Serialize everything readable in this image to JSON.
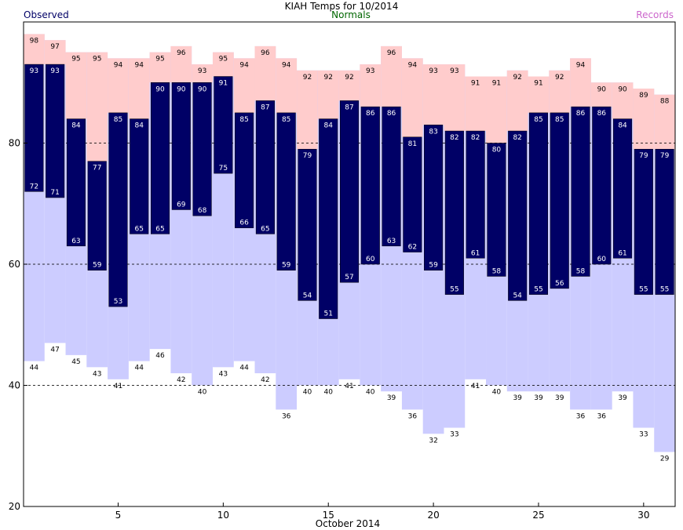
{
  "chart_data": {
    "type": "bar",
    "title": "KIAH Temps for 10/2014",
    "legend": [
      {
        "label": "Observed",
        "color": "#000066"
      },
      {
        "label": "Normals",
        "color": "#006600"
      },
      {
        "label": "Records",
        "color": "#cc66cc"
      }
    ],
    "xlabel": "October 2014",
    "ylabel": "",
    "ylim": [
      20,
      100
    ],
    "xlim": [
      0.5,
      31.5
    ],
    "x_ticks": [
      5,
      10,
      15,
      20,
      25,
      30
    ],
    "y_ticks": [
      20,
      40,
      60,
      80
    ],
    "grid_y": [
      40,
      60,
      80
    ],
    "days": [
      1,
      2,
      3,
      4,
      5,
      6,
      7,
      8,
      9,
      10,
      11,
      12,
      13,
      14,
      15,
      16,
      17,
      18,
      19,
      20,
      21,
      22,
      23,
      24,
      25,
      26,
      27,
      28,
      29,
      30,
      31
    ],
    "series": [
      {
        "name": "Observed High",
        "values": [
          93,
          93,
          84,
          77,
          85,
          84,
          90,
          90,
          90,
          91,
          85,
          87,
          85,
          79,
          84,
          87,
          86,
          86,
          81,
          83,
          82,
          82,
          80,
          82,
          85,
          85,
          86,
          86,
          84,
          79,
          79
        ]
      },
      {
        "name": "Observed Low",
        "values": [
          72,
          71,
          63,
          59,
          53,
          65,
          65,
          69,
          68,
          75,
          66,
          65,
          59,
          54,
          51,
          57,
          60,
          63,
          62,
          59,
          55,
          61,
          58,
          54,
          55,
          56,
          58,
          60,
          61,
          55,
          55
        ]
      },
      {
        "name": "Record High",
        "values": [
          98,
          97,
          95,
          95,
          94,
          94,
          95,
          96,
          93,
          95,
          94,
          96,
          94,
          92,
          92,
          92,
          93,
          96,
          94,
          93,
          93,
          91,
          91,
          92,
          91,
          92,
          94,
          90,
          90,
          89,
          88
        ]
      },
      {
        "name": "Record Low",
        "values": [
          44,
          47,
          45,
          43,
          41,
          44,
          46,
          42,
          40,
          43,
          44,
          42,
          36,
          40,
          40,
          41,
          40,
          39,
          36,
          32,
          33,
          41,
          40,
          39,
          39,
          39,
          36,
          36,
          39,
          33,
          29
        ]
      },
      {
        "name": "Normal High",
        "values": [
          null,
          null,
          null,
          null,
          null,
          null,
          null,
          null,
          null,
          null,
          null,
          null,
          null,
          null,
          null,
          null,
          null,
          null,
          null,
          null,
          null,
          null,
          null,
          null,
          null,
          null,
          null,
          null,
          null,
          null,
          null
        ]
      },
      {
        "name": "Normal Low",
        "values": [
          null,
          null,
          null,
          null,
          null,
          null,
          null,
          null,
          null,
          null,
          null,
          null,
          null,
          null,
          null,
          null,
          null,
          null,
          null,
          null,
          null,
          null,
          null,
          null,
          null,
          null,
          null,
          null,
          null,
          null,
          null
        ]
      }
    ],
    "colors": {
      "observed": "#000066",
      "normal_band": "#ccffcc",
      "record_high_band": "#ffcccc",
      "record_low_band": "#ccccff",
      "observed_label": "#ffffff",
      "record_label": "#000000"
    }
  }
}
